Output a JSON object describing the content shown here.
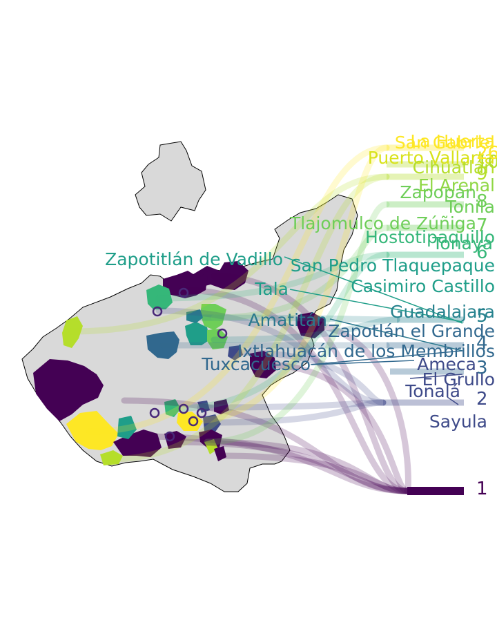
{
  "palette": [
    "#440154",
    "#482878",
    "#3e4a89",
    "#31688e",
    "#26828e",
    "#1f9e89",
    "#35b779",
    "#6ece58",
    "#b5de2b",
    "#fde725"
  ],
  "background_color": "#d9d9d9",
  "ranks": [
    {
      "value": "1",
      "color": "#440154"
    },
    {
      "value": "2",
      "color": "#3e4a89"
    },
    {
      "value": "3",
      "color": "#31688e"
    },
    {
      "value": "4",
      "color": "#31688e"
    },
    {
      "value": "5",
      "color": "#26828e"
    },
    {
      "value": "6",
      "color": "#35b779"
    },
    {
      "value": "7",
      "color": "#6ece58"
    },
    {
      "value": "8",
      "color": "#6ece58"
    },
    {
      "value": "9",
      "color": "#b5de2b"
    },
    {
      "value": "10",
      "color": "#b5de2b"
    },
    {
      "value": "26",
      "color": "#fde725"
    }
  ],
  "municipalities": [
    {
      "name": "San Gabriel",
      "color": "#fde725"
    },
    {
      "name": "La Huerta",
      "color": "#fde725"
    },
    {
      "name": "Puerto Vallarta",
      "color": "#d8e219"
    },
    {
      "name": "Cihuatlán",
      "color": "#b5de2b"
    },
    {
      "name": "El Arenal",
      "color": "#8fd744"
    },
    {
      "name": "Zapopan",
      "color": "#6ece58"
    },
    {
      "name": "Tonila",
      "color": "#6ece58"
    },
    {
      "name": "Tlajomulco de Zúñiga",
      "color": "#6ece58"
    },
    {
      "name": "Hostotipaquillo",
      "color": "#35b779"
    },
    {
      "name": "Tonaya",
      "color": "#35b779"
    },
    {
      "name": "Zapotitlán de Vadillo",
      "color": "#1f9e89"
    },
    {
      "name": "San Pedro Tlaquepaque",
      "color": "#1f9e89"
    },
    {
      "name": "Tala",
      "color": "#1f9e89"
    },
    {
      "name": "Casimiro Castillo",
      "color": "#1f9e89"
    },
    {
      "name": "Guadalajara",
      "color": "#26828e"
    },
    {
      "name": "Amatitán",
      "color": "#2a788e"
    },
    {
      "name": "Zapotlán el Grande",
      "color": "#31688e"
    },
    {
      "name": "Ixtlahuacán de los Membrillos",
      "color": "#31688e"
    },
    {
      "name": "Tuxcacuesco",
      "color": "#31688e"
    },
    {
      "name": "Ameca",
      "color": "#3e4a89"
    },
    {
      "name": "El Grullo",
      "color": "#3e4a89"
    },
    {
      "name": "Tonalá",
      "color": "#3e4a89"
    },
    {
      "name": "Sayula",
      "color": "#3e4a89"
    }
  ]
}
